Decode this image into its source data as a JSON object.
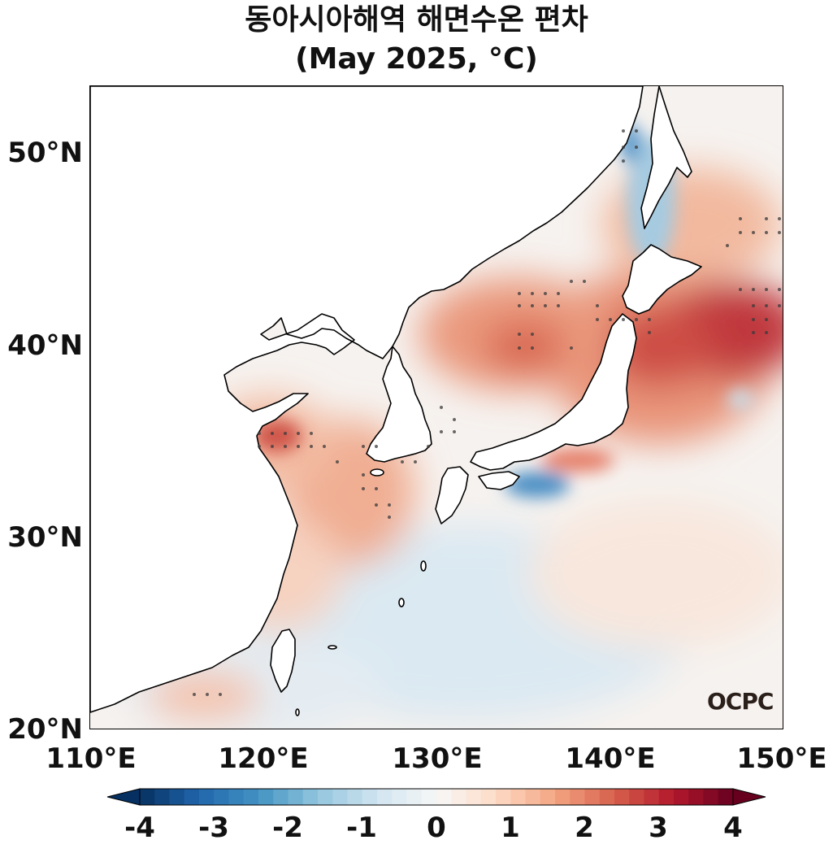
{
  "title": {
    "line1": "동아시아해역 해면수온 편차",
    "line2": "(May 2025, °C)"
  },
  "y_ticks": [
    "50°N",
    "40°N",
    "30°N",
    "20°N"
  ],
  "x_ticks": [
    "110°E",
    "120°E",
    "130°E",
    "140°E",
    "150°E"
  ],
  "colorbar": {
    "ticks": [
      "-4",
      "-3",
      "-2",
      "-1",
      "0",
      "1",
      "2",
      "3",
      "4"
    ],
    "min": -4,
    "max": 4,
    "steps": 40,
    "cold_colors": [
      "#053061",
      "#2166ac",
      "#4393c3",
      "#92c5de",
      "#d1e5f0",
      "#f7f7f7"
    ],
    "warm_colors": [
      "#f7f7f7",
      "#fddbc7",
      "#f4a582",
      "#d6604d",
      "#b2182b",
      "#67001f"
    ]
  },
  "map": {
    "lon_range": [
      110,
      150
    ],
    "lat_range": [
      20,
      53.5
    ],
    "land_color": "#ffffff",
    "coast_color": "#000000"
  },
  "watermark": "OCPC"
}
